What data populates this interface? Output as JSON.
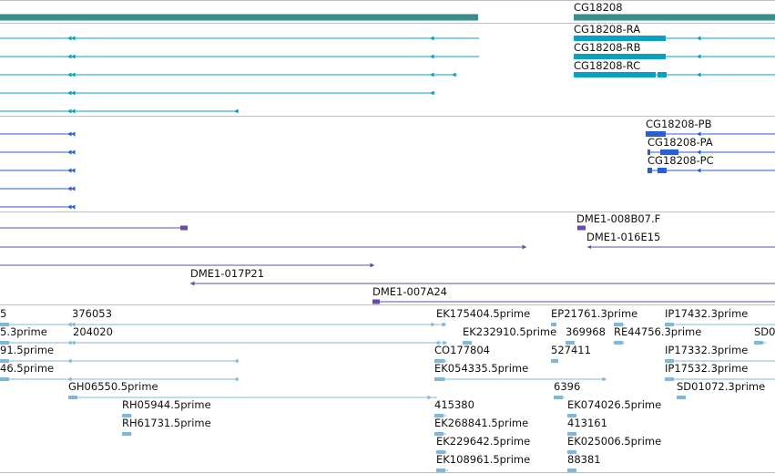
{
  "colors": {
    "gene": "#3a8c8c",
    "transcript": "#0aa0c0",
    "protein": "#2a5fd0",
    "clone": "#6a4aa8",
    "est": "#80b8dc",
    "divider": "#c0c0c0"
  },
  "gene_track": {
    "label": "CG18208"
  },
  "transcripts": [
    {
      "label": "CG18208-RA"
    },
    {
      "label": "CG18208-RB"
    },
    {
      "label": "CG18208-RC"
    }
  ],
  "proteins": [
    {
      "label": "CG18208-PB"
    },
    {
      "label": "CG18208-PA"
    },
    {
      "label": "CG18208-PC"
    }
  ],
  "clones": [
    {
      "label": "DME1-008B07.F"
    },
    {
      "label": "DME1-016E15"
    },
    {
      "label": "DME1-017P21"
    },
    {
      "label": "DME1-007A24"
    }
  ],
  "ests": [
    {
      "label": "5"
    },
    {
      "label": "376053"
    },
    {
      "label": "EK175404.5prime"
    },
    {
      "label": "EP21761.3prime"
    },
    {
      "label": "IP17432.3prime"
    },
    {
      "label": "5.3prime"
    },
    {
      "label": "204020"
    },
    {
      "label": "EK232910.5prime"
    },
    {
      "label": "369968"
    },
    {
      "label": "RE44756.3prime"
    },
    {
      "label": "SD0"
    },
    {
      "label": "91.5prime"
    },
    {
      "label": "CO177804"
    },
    {
      "label": "527411"
    },
    {
      "label": "IP17332.3prime"
    },
    {
      "label": "46.5prime"
    },
    {
      "label": "EK054335.5prime"
    },
    {
      "label": "IP17532.3prime"
    },
    {
      "label": "GH06550.5prime"
    },
    {
      "label": "6396"
    },
    {
      "label": "SD01072.3prime"
    },
    {
      "label": "RH05944.5prime"
    },
    {
      "label": "415380"
    },
    {
      "label": "EK074026.5prime"
    },
    {
      "label": "RH61731.5prime"
    },
    {
      "label": "EK268841.5prime"
    },
    {
      "label": "413161"
    },
    {
      "label": "EK229642.5prime"
    },
    {
      "label": "EK025006.5prime"
    },
    {
      "label": "EK108961.5prime"
    },
    {
      "label": "88381"
    }
  ]
}
